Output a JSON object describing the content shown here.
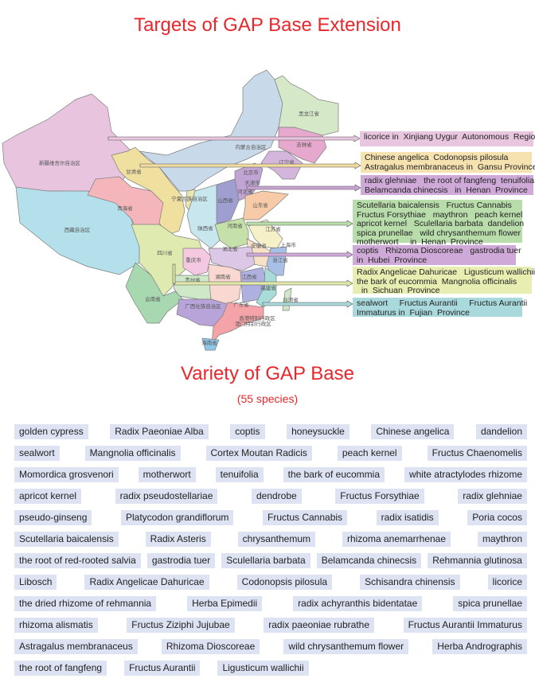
{
  "header": {
    "title": "Targets of GAP Base Extension"
  },
  "map": {
    "provinces": [
      "新疆维吾尔自治区",
      "西藏自治区",
      "青海省",
      "甘肃省",
      "内蒙古自治区",
      "黑龙江省",
      "吉林省",
      "辽宁省",
      "北京市",
      "天津市",
      "河北省",
      "山西省",
      "宁夏回族自治区",
      "山东省",
      "陕西省",
      "河南省",
      "江苏省",
      "上海市",
      "安徽省",
      "湖北省",
      "四川省",
      "重庆市",
      "浙江省",
      "湖南省",
      "江西省",
      "贵州省",
      "福建省",
      "云南省",
      "广西壮族自治区",
      "广东省",
      "台湾省",
      "香港特别行政区",
      "澳门特别行政区",
      "海南省"
    ]
  },
  "callouts": [
    {
      "lines": [
        "licorice in  Xinjiang Uygur  Autonomous  Region"
      ],
      "color": "#e9c6df"
    },
    {
      "lines": [
        "Chinese angelica  Codonopsis pilosula",
        "Astragalus membranaceus in  Gansu Province"
      ],
      "color": "#f5e2b0"
    },
    {
      "lines": [
        "radix glehniae   the root of fangfeng  tenuifolia",
        "Belamcanda chinecsis   in  Henan  Province"
      ],
      "color": "#cfaad8"
    },
    {
      "lines": [
        "Scutellaria baicalensis   Fructus Cannabis",
        "Fructus Forsythiae   maythron   peach kernel",
        "apricot kernel   Sculellaria barbata  dandelion",
        "spica prunellae   wild chrysanthemum flower",
        "motherwort     in  Henan  Province"
      ],
      "color": "#b9dcab"
    },
    {
      "lines": [
        "coptis   Rhizoma Dioscoreae   gastrodia tuer",
        "in  Hubei  Province"
      ],
      "color": "#cfaad8"
    },
    {
      "lines": [
        "Radix Angelicae Dahuricae   Ligusticum wallichii",
        "the bark of eucommia  Mangnolia officinalis",
        "  in  Sichuan  Province"
      ],
      "color": "#e8eeb2"
    },
    {
      "lines": [
        "sealwort     Fructus Aurantii     Fructus Aurantii",
        "Immaturus in  Fujian  Province"
      ],
      "color": "#a9d9dc"
    }
  ],
  "variety": {
    "title": "Variety of GAP Base",
    "subtitle": "(55 species)",
    "rows": [
      [
        "golden cypress",
        "Radix Paeoniae Alba",
        "coptis",
        "honeysuckle",
        "Chinese angelica",
        "dandelion"
      ],
      [
        "sealwort",
        "Mangnolia officinalis",
        "Cortex Moutan Radicis",
        "peach kernel",
        "Fructus Chaenomelis"
      ],
      [
        "Momordica grosvenori",
        "motherwort",
        "tenuifolia",
        "the bark of eucommia",
        "white atractylodes rhizome"
      ],
      [
        "apricot kernel",
        "radix pseudostellariae",
        "dendrobe",
        "Fructus Forsythiae",
        "radix glehniae"
      ],
      [
        "pseudo-ginseng",
        "Platycodon grandiflorum",
        "Fructus Cannabis",
        "radix isatidis",
        "Poria cocos"
      ],
      [
        "Scutellaria baicalensis",
        "Radix Asteris",
        "chrysanthemum",
        "rhizoma anemarrhenae",
        "maythron"
      ],
      [
        "the root of red-rooted salvia",
        "gastrodia tuer",
        "Sculellaria barbata",
        "Belamcanda chinecsis",
        "Rehmannia glutinosa"
      ],
      [
        "Libosch",
        "Radix Angelicae Dahuricae",
        "Codonopsis pilosula",
        "Schisandra chinensis",
        "licorice"
      ],
      [
        "the dried rhizome of rehmannia",
        "Herba Epimedii",
        "radix achyranthis bidentatae",
        "spica prunellae"
      ],
      [
        "rhizoma alismatis",
        "Fructus Ziziphi Jujubae",
        "radix paeoniae rubrathe",
        "Fructus Aurantii Immaturus"
      ],
      [
        "Astragalus membranaceus",
        "Rhizoma Dioscoreae",
        "wild chrysanthemum flower",
        "Herba Andrographis"
      ],
      [
        "the root of fangfeng",
        "Fructus Aurantii",
        "Ligusticum wallichii"
      ]
    ]
  }
}
